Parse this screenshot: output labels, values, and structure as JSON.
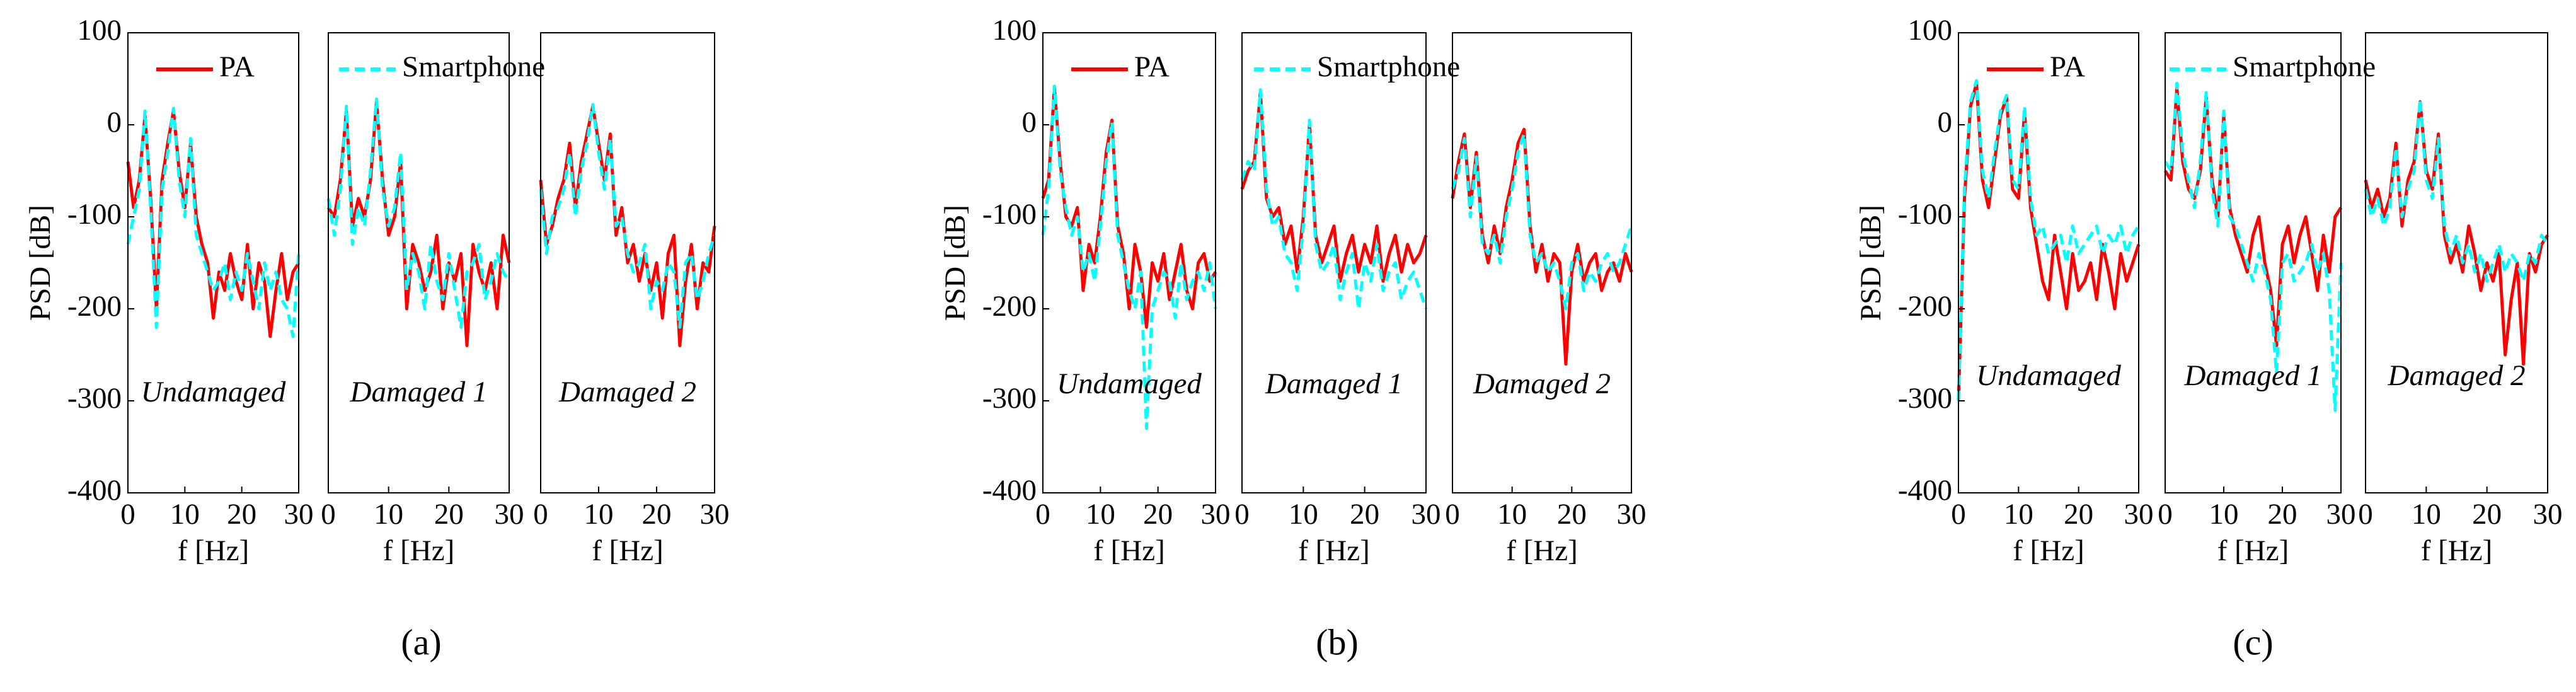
{
  "chart_data": [
    {
      "type": "line",
      "annotation": "Undamaged",
      "x_label": "f [Hz]",
      "y_label": "PSD [dB]",
      "legend": "top",
      "x": [
        0,
        1,
        2,
        3,
        4,
        5,
        6,
        7,
        8,
        9,
        10,
        11,
        12,
        13,
        14,
        15,
        16,
        17,
        18,
        19,
        20,
        21,
        22,
        23,
        24,
        25,
        26,
        27,
        28,
        29,
        30
      ],
      "xlim": [
        0,
        30
      ],
      "xticks": [
        0,
        10,
        20,
        30
      ],
      "ylim": [
        -400,
        100
      ],
      "yticks": [
        -400,
        -300,
        -200,
        -100,
        0,
        100
      ],
      "series": [
        {
          "name": "PA",
          "color": "#ff0000",
          "linestyle": "-",
          "values": [
            -40,
            -90,
            -60,
            10,
            -80,
            -200,
            -60,
            -20,
            15,
            -50,
            -90,
            -20,
            -100,
            -130,
            -150,
            -210,
            -160,
            -180,
            -140,
            -170,
            -190,
            -130,
            -200,
            -150,
            -170,
            -230,
            -180,
            -140,
            -190,
            -160,
            -150
          ]
        },
        {
          "name": "Smartphone",
          "color": "#00ffff",
          "linestyle": "--",
          "values": [
            -130,
            -100,
            -70,
            15,
            -90,
            -220,
            -70,
            -30,
            18,
            -60,
            -100,
            -15,
            -120,
            -140,
            -160,
            -180,
            -170,
            -150,
            -190,
            -160,
            -180,
            -140,
            -170,
            -200,
            -150,
            -180,
            -160,
            -190,
            -200,
            -230,
            -140
          ]
        }
      ]
    },
    {
      "type": "line",
      "annotation": "Damaged 1",
      "x_label": "f [Hz]",
      "caption": "(a)",
      "x": [
        0,
        1,
        2,
        3,
        4,
        5,
        6,
        7,
        8,
        9,
        10,
        11,
        12,
        13,
        14,
        15,
        16,
        17,
        18,
        19,
        20,
        21,
        22,
        23,
        24,
        25,
        26,
        27,
        28,
        29,
        30
      ],
      "xlim": [
        0,
        30
      ],
      "xticks": [
        0,
        10,
        20,
        30
      ],
      "ylim": [
        -400,
        100
      ],
      "series": [
        {
          "color": "#ff0000",
          "linestyle": "-",
          "values": [
            -90,
            -100,
            -60,
            15,
            -110,
            -80,
            -100,
            -60,
            25,
            -60,
            -120,
            -100,
            -40,
            -200,
            -130,
            -150,
            -180,
            -160,
            -120,
            -200,
            -150,
            -170,
            -140,
            -240,
            -130,
            -160,
            -180,
            -150,
            -200,
            -120,
            -150
          ]
        },
        {
          "color": "#00ffff",
          "linestyle": "--",
          "values": [
            -80,
            -120,
            -70,
            20,
            -130,
            -90,
            -110,
            -50,
            28,
            -70,
            -110,
            -90,
            -30,
            -180,
            -140,
            -160,
            -200,
            -130,
            -170,
            -190,
            -140,
            -180,
            -220,
            -160,
            -150,
            -130,
            -190,
            -170,
            -140,
            -160,
            -170
          ]
        }
      ]
    },
    {
      "type": "line",
      "annotation": "Damaged 2",
      "x_label": "f [Hz]",
      "x": [
        0,
        1,
        2,
        3,
        4,
        5,
        6,
        7,
        8,
        9,
        10,
        11,
        12,
        13,
        14,
        15,
        16,
        17,
        18,
        19,
        20,
        21,
        22,
        23,
        24,
        25,
        26,
        27,
        28,
        29,
        30
      ],
      "xlim": [
        0,
        30
      ],
      "xticks": [
        0,
        10,
        20,
        30
      ],
      "ylim": [
        -400,
        100
      ],
      "series": [
        {
          "color": "#ff0000",
          "linestyle": "-",
          "values": [
            -60,
            -130,
            -110,
            -80,
            -60,
            -20,
            -90,
            -40,
            -10,
            20,
            -20,
            -60,
            -10,
            -120,
            -90,
            -150,
            -130,
            -170,
            -140,
            -180,
            -150,
            -210,
            -140,
            -120,
            -240,
            -170,
            -130,
            -200,
            -150,
            -160,
            -110
          ]
        },
        {
          "color": "#00ffff",
          "linestyle": "--",
          "values": [
            -70,
            -140,
            -100,
            -90,
            -70,
            -30,
            -100,
            -50,
            -20,
            22,
            -30,
            -70,
            -15,
            -110,
            -100,
            -140,
            -160,
            -150,
            -130,
            -200,
            -170,
            -180,
            -150,
            -160,
            -220,
            -150,
            -140,
            -190,
            -170,
            -140,
            -120
          ]
        }
      ]
    },
    {
      "type": "line",
      "annotation": "Undamaged",
      "x_label": "f [Hz]",
      "y_label": "PSD [dB]",
      "legend": "top",
      "x": [
        0,
        1,
        2,
        3,
        4,
        5,
        6,
        7,
        8,
        9,
        10,
        11,
        12,
        13,
        14,
        15,
        16,
        17,
        18,
        19,
        20,
        21,
        22,
        23,
        24,
        25,
        26,
        27,
        28,
        29,
        30
      ],
      "xlim": [
        0,
        30
      ],
      "xticks": [
        0,
        10,
        20,
        30
      ],
      "ylim": [
        -400,
        100
      ],
      "yticks": [
        -400,
        -300,
        -200,
        -100,
        0,
        100
      ],
      "series": [
        {
          "name": "PA",
          "color": "#ff0000",
          "linestyle": "-",
          "values": [
            -80,
            -60,
            40,
            -40,
            -100,
            -110,
            -90,
            -180,
            -130,
            -150,
            -100,
            -30,
            5,
            -110,
            -140,
            -200,
            -130,
            -160,
            -220,
            -150,
            -170,
            -140,
            -190,
            -160,
            -130,
            -180,
            -200,
            -150,
            -140,
            -170,
            -160
          ]
        },
        {
          "name": "Smartphone",
          "color": "#00ffff",
          "linestyle": "--",
          "values": [
            -120,
            -70,
            42,
            -50,
            -90,
            -120,
            -100,
            -160,
            -140,
            -170,
            -110,
            -40,
            3,
            -120,
            -150,
            -180,
            -200,
            -160,
            -330,
            -200,
            -180,
            -160,
            -170,
            -210,
            -150,
            -190,
            -170,
            -160,
            -180,
            -150,
            -200
          ]
        }
      ]
    },
    {
      "type": "line",
      "annotation": "Damaged 1",
      "x_label": "f [Hz]",
      "caption": "(b)",
      "x": [
        0,
        1,
        2,
        3,
        4,
        5,
        6,
        7,
        8,
        9,
        10,
        11,
        12,
        13,
        14,
        15,
        16,
        17,
        18,
        19,
        20,
        21,
        22,
        23,
        24,
        25,
        26,
        27,
        28,
        29,
        30
      ],
      "xlim": [
        0,
        30
      ],
      "xticks": [
        0,
        10,
        20,
        30
      ],
      "ylim": [
        -400,
        100
      ],
      "series": [
        {
          "color": "#ff0000",
          "linestyle": "-",
          "values": [
            -70,
            -50,
            -40,
            35,
            -80,
            -100,
            -90,
            -130,
            -110,
            -160,
            -100,
            0,
            -120,
            -150,
            -130,
            -110,
            -170,
            -140,
            -120,
            -160,
            -130,
            -150,
            -110,
            -170,
            -140,
            -120,
            -160,
            -130,
            -150,
            -140,
            -120
          ]
        },
        {
          "color": "#00ffff",
          "linestyle": "--",
          "values": [
            -60,
            -40,
            -50,
            38,
            -70,
            -110,
            -100,
            -140,
            -150,
            -180,
            -110,
            5,
            -130,
            -160,
            -150,
            -130,
            -190,
            -160,
            -140,
            -200,
            -150,
            -170,
            -130,
            -180,
            -160,
            -150,
            -190,
            -170,
            -160,
            -180,
            -200
          ]
        }
      ]
    },
    {
      "type": "line",
      "annotation": "Damaged 2",
      "x_label": "f [Hz]",
      "x": [
        0,
        1,
        2,
        3,
        4,
        5,
        6,
        7,
        8,
        9,
        10,
        11,
        12,
        13,
        14,
        15,
        16,
        17,
        18,
        19,
        20,
        21,
        22,
        23,
        24,
        25,
        26,
        27,
        28,
        29,
        30
      ],
      "xlim": [
        0,
        30
      ],
      "xticks": [
        0,
        10,
        20,
        30
      ],
      "ylim": [
        -400,
        100
      ],
      "series": [
        {
          "color": "#ff0000",
          "linestyle": "-",
          "values": [
            -80,
            -40,
            -10,
            -90,
            -30,
            -120,
            -150,
            -110,
            -140,
            -90,
            -60,
            -20,
            -5,
            -110,
            -160,
            -130,
            -170,
            -140,
            -150,
            -260,
            -160,
            -130,
            -170,
            -150,
            -140,
            -180,
            -160,
            -150,
            -170,
            -140,
            -160
          ]
        },
        {
          "color": "#00ffff",
          "linestyle": "--",
          "values": [
            -70,
            -50,
            -15,
            -100,
            -35,
            -130,
            -140,
            -120,
            -150,
            -100,
            -70,
            -30,
            -10,
            -120,
            -150,
            -140,
            -160,
            -150,
            -170,
            -200,
            -150,
            -140,
            -180,
            -160,
            -170,
            -150,
            -140,
            -160,
            -150,
            -130,
            -110
          ]
        }
      ]
    },
    {
      "type": "line",
      "annotation": "Undamaged",
      "x_label": "f [Hz]",
      "y_label": "PSD [dB]",
      "legend": "top",
      "x": [
        0,
        1,
        2,
        3,
        4,
        5,
        6,
        7,
        8,
        9,
        10,
        11,
        12,
        13,
        14,
        15,
        16,
        17,
        18,
        19,
        20,
        21,
        22,
        23,
        24,
        25,
        26,
        27,
        28,
        29,
        30
      ],
      "xlim": [
        0,
        30
      ],
      "xticks": [
        0,
        10,
        20,
        30
      ],
      "ylim": [
        -400,
        100
      ],
      "yticks": [
        -400,
        -300,
        -200,
        -100,
        0,
        100
      ],
      "series": [
        {
          "name": "PA",
          "color": "#ff0000",
          "linestyle": "-",
          "values": [
            -300,
            -80,
            20,
            45,
            -60,
            -90,
            -40,
            10,
            30,
            -70,
            -80,
            15,
            -90,
            -130,
            -170,
            -190,
            -120,
            -160,
            -200,
            -140,
            -180,
            -170,
            -150,
            -190,
            -130,
            -160,
            -200,
            -140,
            -170,
            -150,
            -130
          ]
        },
        {
          "name": "Smartphone",
          "color": "#00ffff",
          "linestyle": "--",
          "values": [
            -300,
            -70,
            25,
            48,
            -50,
            -80,
            -30,
            15,
            32,
            -60,
            -70,
            20,
            -80,
            -120,
            -110,
            -140,
            -130,
            -120,
            -150,
            -110,
            -140,
            -130,
            -120,
            -110,
            -140,
            -120,
            -130,
            -110,
            -140,
            -120,
            -110
          ]
        }
      ]
    },
    {
      "type": "line",
      "annotation": "Damaged 1",
      "x_label": "f [Hz]",
      "caption": "(c)",
      "x": [
        0,
        1,
        2,
        3,
        4,
        5,
        6,
        7,
        8,
        9,
        10,
        11,
        12,
        13,
        14,
        15,
        16,
        17,
        18,
        19,
        20,
        21,
        22,
        23,
        24,
        25,
        26,
        27,
        28,
        29,
        30
      ],
      "xlim": [
        0,
        30
      ],
      "xticks": [
        0,
        10,
        20,
        30
      ],
      "ylim": [
        -400,
        100
      ],
      "series": [
        {
          "color": "#ff0000",
          "linestyle": "-",
          "values": [
            -50,
            -60,
            40,
            -40,
            -70,
            -80,
            -50,
            30,
            -60,
            -100,
            10,
            -90,
            -120,
            -140,
            -160,
            -120,
            -100,
            -150,
            -180,
            -240,
            -130,
            -110,
            -150,
            -120,
            -100,
            -140,
            -180,
            -120,
            -160,
            -100,
            -90
          ]
        },
        {
          "color": "#00ffff",
          "linestyle": "--",
          "values": [
            -40,
            -50,
            45,
            -30,
            -60,
            -90,
            -40,
            35,
            -70,
            -110,
            15,
            -100,
            -110,
            -130,
            -150,
            -170,
            -140,
            -160,
            -190,
            -270,
            -150,
            -140,
            -170,
            -160,
            -150,
            -130,
            -160,
            -140,
            -180,
            -310,
            -150
          ]
        }
      ]
    },
    {
      "type": "line",
      "annotation": "Damaged 2",
      "x_label": "f [Hz]",
      "x": [
        0,
        1,
        2,
        3,
        4,
        5,
        6,
        7,
        8,
        9,
        10,
        11,
        12,
        13,
        14,
        15,
        16,
        17,
        18,
        19,
        20,
        21,
        22,
        23,
        24,
        25,
        26,
        27,
        28,
        29,
        30
      ],
      "xlim": [
        0,
        30
      ],
      "xticks": [
        0,
        10,
        20,
        30
      ],
      "ylim": [
        -400,
        100
      ],
      "series": [
        {
          "color": "#ff0000",
          "linestyle": "-",
          "values": [
            -60,
            -90,
            -70,
            -100,
            -80,
            -20,
            -110,
            -60,
            -40,
            25,
            -50,
            -70,
            -10,
            -120,
            -150,
            -130,
            -160,
            -110,
            -140,
            -180,
            -150,
            -170,
            -140,
            -250,
            -190,
            -150,
            -260,
            -140,
            -160,
            -130,
            -120
          ]
        },
        {
          "color": "#00ffff",
          "linestyle": "--",
          "values": [
            -70,
            -100,
            -80,
            -110,
            -90,
            -25,
            -100,
            -70,
            -50,
            28,
            -60,
            -80,
            -15,
            -110,
            -140,
            -120,
            -150,
            -130,
            -160,
            -140,
            -170,
            -150,
            -130,
            -160,
            -140,
            -150,
            -170,
            -140,
            -150,
            -120,
            -130
          ]
        }
      ]
    }
  ]
}
